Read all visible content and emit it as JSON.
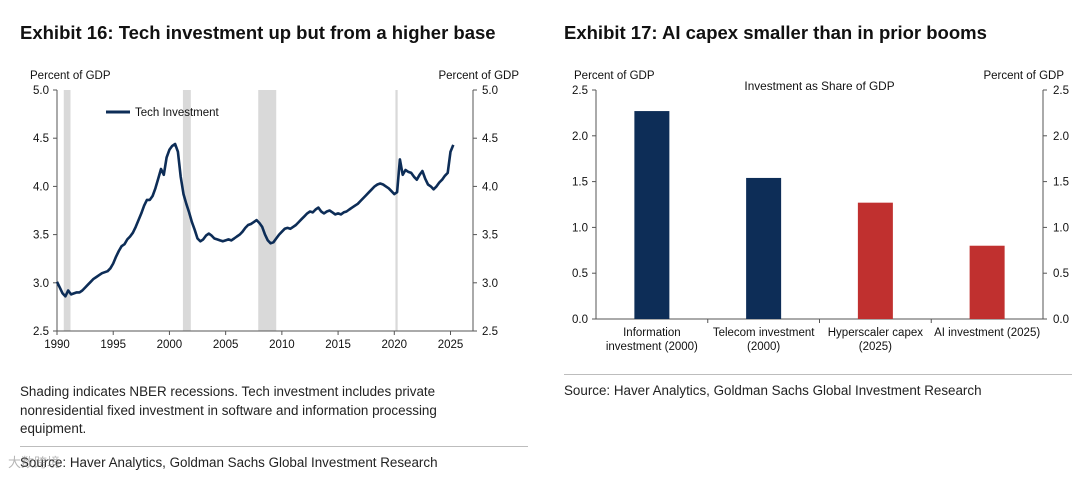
{
  "exhibit16": {
    "title": "Exhibit 16: Tech investment up but from a higher base",
    "note": "Shading indicates NBER recessions. Tech investment includes private nonresidential fixed investment in software and information processing equipment.",
    "source": "Source: Haver Analytics, Goldman Sachs Global Investment Research"
  },
  "exhibit17": {
    "title": "Exhibit 17: AI capex smaller than in prior booms",
    "source": "Source: Haver Analytics, Goldman Sachs Global Investment Research"
  },
  "watermark": "大数跨境",
  "chart_data": [
    {
      "type": "line",
      "ylabel_left": "Percent of GDP",
      "ylabel_right": "Percent of GDP",
      "ylim": [
        2.5,
        5.0
      ],
      "xlim": [
        1990,
        2027
      ],
      "yticks": [
        "2.5",
        "3.0",
        "3.5",
        "4.0",
        "4.5",
        "5.0"
      ],
      "xticks": [
        "1990",
        "1995",
        "2000",
        "2005",
        "2010",
        "2015",
        "2020",
        "2025"
      ],
      "legend": "top-left",
      "color": "#0d2d57",
      "recessions": [
        [
          1990.6,
          1991.2
        ],
        [
          2001.2,
          2001.9
        ],
        [
          2007.9,
          2009.5
        ],
        [
          2020.1,
          2020.3
        ]
      ],
      "series": [
        {
          "name": "Tech Investment",
          "x": [
            1990.0,
            1990.25,
            1990.5,
            1990.75,
            1991.0,
            1991.25,
            1991.5,
            1991.75,
            1992.0,
            1992.25,
            1992.5,
            1992.75,
            1993.0,
            1993.25,
            1993.5,
            1993.75,
            1994.0,
            1994.25,
            1994.5,
            1994.75,
            1995.0,
            1995.25,
            1995.5,
            1995.75,
            1996.0,
            1996.25,
            1996.5,
            1996.75,
            1997.0,
            1997.25,
            1997.5,
            1997.75,
            1998.0,
            1998.25,
            1998.5,
            1998.75,
            1999.0,
            1999.25,
            1999.5,
            1999.75,
            2000.0,
            2000.25,
            2000.5,
            2000.75,
            2001.0,
            2001.25,
            2001.5,
            2001.75,
            2002.0,
            2002.25,
            2002.5,
            2002.75,
            2003.0,
            2003.25,
            2003.5,
            2003.75,
            2004.0,
            2004.25,
            2004.5,
            2004.75,
            2005.0,
            2005.25,
            2005.5,
            2005.75,
            2006.0,
            2006.25,
            2006.5,
            2006.75,
            2007.0,
            2007.25,
            2007.5,
            2007.75,
            2008.0,
            2008.25,
            2008.5,
            2008.75,
            2009.0,
            2009.25,
            2009.5,
            2009.75,
            2010.0,
            2010.25,
            2010.5,
            2010.75,
            2011.0,
            2011.25,
            2011.5,
            2011.75,
            2012.0,
            2012.25,
            2012.5,
            2012.75,
            2013.0,
            2013.25,
            2013.5,
            2013.75,
            2014.0,
            2014.25,
            2014.5,
            2014.75,
            2015.0,
            2015.25,
            2015.5,
            2015.75,
            2016.0,
            2016.25,
            2016.5,
            2016.75,
            2017.0,
            2017.25,
            2017.5,
            2017.75,
            2018.0,
            2018.25,
            2018.5,
            2018.75,
            2019.0,
            2019.25,
            2019.5,
            2019.75,
            2020.0,
            2020.25,
            2020.5,
            2020.75,
            2021.0,
            2021.25,
            2021.5,
            2021.75,
            2022.0,
            2022.25,
            2022.5,
            2022.75,
            2023.0,
            2023.25,
            2023.5,
            2023.75,
            2024.0,
            2024.25,
            2024.5,
            2024.75,
            2025.0,
            2025.25
          ],
          "values": [
            3.01,
            2.95,
            2.89,
            2.86,
            2.92,
            2.88,
            2.89,
            2.9,
            2.9,
            2.92,
            2.95,
            2.98,
            3.01,
            3.04,
            3.06,
            3.08,
            3.1,
            3.11,
            3.12,
            3.15,
            3.2,
            3.27,
            3.33,
            3.38,
            3.4,
            3.45,
            3.48,
            3.52,
            3.58,
            3.65,
            3.72,
            3.8,
            3.86,
            3.86,
            3.9,
            3.98,
            4.08,
            4.18,
            4.12,
            4.3,
            4.38,
            4.42,
            4.44,
            4.36,
            4.1,
            3.92,
            3.82,
            3.73,
            3.63,
            3.55,
            3.46,
            3.43,
            3.45,
            3.49,
            3.51,
            3.49,
            3.46,
            3.45,
            3.44,
            3.43,
            3.44,
            3.45,
            3.44,
            3.46,
            3.48,
            3.5,
            3.53,
            3.57,
            3.6,
            3.61,
            3.63,
            3.65,
            3.62,
            3.58,
            3.5,
            3.44,
            3.41,
            3.42,
            3.46,
            3.5,
            3.53,
            3.56,
            3.57,
            3.56,
            3.58,
            3.6,
            3.63,
            3.66,
            3.69,
            3.72,
            3.74,
            3.73,
            3.76,
            3.78,
            3.74,
            3.72,
            3.74,
            3.75,
            3.73,
            3.71,
            3.72,
            3.71,
            3.73,
            3.74,
            3.76,
            3.78,
            3.8,
            3.82,
            3.85,
            3.88,
            3.91,
            3.94,
            3.97,
            4.0,
            4.02,
            4.03,
            4.02,
            4.0,
            3.98,
            3.95,
            3.92,
            3.94,
            4.28,
            4.12,
            4.17,
            4.15,
            4.14,
            4.1,
            4.07,
            4.12,
            4.16,
            4.08,
            4.02,
            4.0,
            3.97,
            4.0,
            4.04,
            4.07,
            4.11,
            4.14,
            4.36,
            4.43
          ]
        }
      ]
    },
    {
      "type": "bar",
      "title": "Investment as Share of GDP",
      "ylabel_left": "Percent of GDP",
      "ylabel_right": "Percent of GDP",
      "ylim": [
        0,
        2.5
      ],
      "yticks": [
        "0.0",
        "0.5",
        "1.0",
        "1.5",
        "2.0",
        "2.5"
      ],
      "categories": [
        [
          "Information",
          "investment (2000)"
        ],
        [
          "Telecom investment",
          "(2000)"
        ],
        [
          "Hyperscaler capex",
          "(2025)"
        ],
        [
          "AI investment (2025)"
        ]
      ],
      "values": [
        2.27,
        1.54,
        1.27,
        0.8
      ],
      "colors": [
        "#0d2d57",
        "#0d2d57",
        "#c0302f",
        "#c0302f"
      ]
    }
  ]
}
